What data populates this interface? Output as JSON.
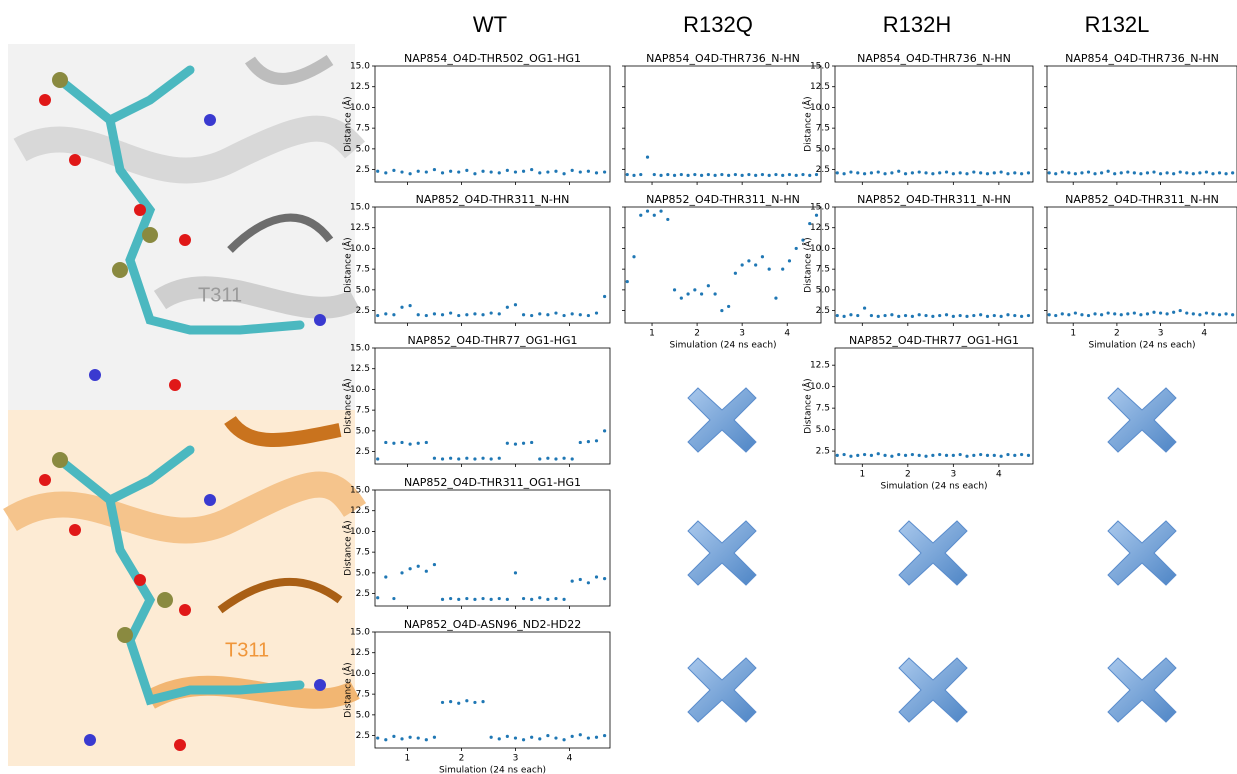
{
  "columns": [
    "WT",
    "R132Q",
    "R132H",
    "R132L"
  ],
  "structure_labels": [
    "T311",
    "T311"
  ],
  "chart_data": [
    {
      "type": "scatter",
      "title": "NAP854_O4D-THR502_OG1-HG1",
      "ylabel": "Distance (Å)",
      "color": "#1f77b4",
      "xlim": [
        0.4,
        4.75
      ],
      "ylim": [
        1,
        15
      ],
      "xticks": [
        1,
        2,
        3,
        4
      ],
      "yticks": [
        2.5,
        {
          "value": 5,
          "label": "5.0"
        },
        7.5,
        {
          "value": 10,
          "label": "10.0"
        },
        12.5,
        {
          "value": 15,
          "label": "15.0"
        }
      ],
      "x": [
        0.45,
        0.6,
        0.75,
        0.9,
        1.05,
        1.2,
        1.35,
        1.5,
        1.65,
        1.8,
        1.95,
        2.1,
        2.25,
        2.4,
        2.55,
        2.7,
        2.85,
        3.0,
        3.15,
        3.3,
        3.45,
        3.6,
        3.75,
        3.9,
        4.05,
        4.2,
        4.35,
        4.5,
        4.65
      ],
      "values": [
        2.3,
        2.1,
        2.4,
        2.2,
        2.0,
        2.3,
        2.2,
        2.5,
        2.1,
        2.3,
        2.2,
        2.4,
        2.0,
        2.3,
        2.2,
        2.1,
        2.4,
        2.2,
        2.3,
        2.5,
        2.1,
        2.2,
        2.3,
        2.0,
        2.4,
        2.2,
        2.3,
        2.1,
        2.2
      ]
    },
    {
      "type": "scatter",
      "title": "NAP852_O4D-THR311_N-HN",
      "ylabel": "Distance (Å)",
      "color": "#1f77b4",
      "xlim": [
        0.4,
        4.75
      ],
      "ylim": [
        1,
        15
      ],
      "xticks": [
        1,
        2,
        3,
        4
      ],
      "yticks": [
        2.5,
        {
          "value": 5,
          "label": "5.0"
        },
        7.5,
        {
          "value": 10,
          "label": "10.0"
        },
        12.5,
        {
          "value": 15,
          "label": "15.0"
        }
      ],
      "x": [
        0.45,
        0.6,
        0.75,
        0.9,
        1.05,
        1.2,
        1.35,
        1.5,
        1.65,
        1.8,
        1.95,
        2.1,
        2.25,
        2.4,
        2.55,
        2.7,
        2.85,
        3.0,
        3.15,
        3.3,
        3.45,
        3.6,
        3.75,
        3.9,
        4.05,
        4.2,
        4.35,
        4.5,
        4.65
      ],
      "values": [
        1.9,
        2.1,
        2.0,
        2.9,
        3.1,
        2.0,
        1.9,
        2.1,
        2.0,
        2.2,
        1.9,
        2.0,
        2.1,
        2.0,
        2.2,
        2.1,
        2.9,
        3.2,
        2.0,
        1.9,
        2.1,
        2.0,
        2.2,
        1.9,
        2.1,
        2.0,
        1.9,
        2.2,
        4.2
      ]
    },
    {
      "type": "scatter",
      "title": "NAP852_O4D-THR77_OG1-HG1",
      "ylabel": "Distance (Å)",
      "color": "#1f77b4",
      "xlim": [
        0.4,
        4.75
      ],
      "ylim": [
        1,
        15
      ],
      "xticks": [
        1,
        2,
        3,
        4
      ],
      "yticks": [
        2.5,
        {
          "value": 5,
          "label": "5.0"
        },
        7.5,
        {
          "value": 10,
          "label": "10.0"
        },
        12.5,
        {
          "value": 15,
          "label": "15.0"
        }
      ],
      "x": [
        0.45,
        0.6,
        0.75,
        0.9,
        1.05,
        1.2,
        1.35,
        1.5,
        1.65,
        1.8,
        1.95,
        2.1,
        2.25,
        2.4,
        2.55,
        2.7,
        2.85,
        3.0,
        3.15,
        3.3,
        3.45,
        3.6,
        3.75,
        3.9,
        4.05,
        4.2,
        4.35,
        4.5,
        4.65
      ],
      "values": [
        1.6,
        3.6,
        3.5,
        3.6,
        3.4,
        3.5,
        3.6,
        1.7,
        1.6,
        1.7,
        1.6,
        1.7,
        1.6,
        1.7,
        1.6,
        1.7,
        3.5,
        3.4,
        3.5,
        3.6,
        1.6,
        1.7,
        1.6,
        1.7,
        1.6,
        3.6,
        3.7,
        3.8,
        5.0
      ]
    },
    {
      "type": "scatter",
      "title": "NAP852_O4D-THR311_OG1-HG1",
      "ylabel": "Distance (Å)",
      "color": "#1f77b4",
      "xlim": [
        0.4,
        4.75
      ],
      "ylim": [
        1,
        15
      ],
      "xticks": [
        1,
        2,
        3,
        4
      ],
      "yticks": [
        2.5,
        {
          "value": 5,
          "label": "5.0"
        },
        7.5,
        {
          "value": 10,
          "label": "10.0"
        },
        12.5,
        {
          "value": 15,
          "label": "15.0"
        }
      ],
      "x": [
        0.45,
        0.6,
        0.75,
        0.9,
        1.05,
        1.2,
        1.35,
        1.5,
        1.65,
        1.8,
        1.95,
        2.1,
        2.25,
        2.4,
        2.55,
        2.7,
        2.85,
        3.0,
        3.15,
        3.3,
        3.45,
        3.6,
        3.75,
        3.9,
        4.05,
        4.2,
        4.35,
        4.5,
        4.65
      ],
      "values": [
        2.0,
        4.5,
        1.9,
        5.0,
        5.5,
        5.8,
        5.2,
        6.0,
        1.8,
        1.9,
        1.8,
        1.9,
        1.8,
        1.9,
        1.8,
        1.9,
        1.8,
        5.0,
        1.9,
        1.8,
        2.0,
        1.8,
        1.9,
        1.8,
        4.0,
        4.2,
        3.8,
        4.5,
        4.3
      ]
    },
    {
      "type": "scatter",
      "title": "NAP852_O4D-ASN96_ND2-HD22",
      "ylabel": "Distance (Å)",
      "xlabel": "Simulation (24 ns each)",
      "color": "#1f77b4",
      "xlim": [
        0.4,
        4.75
      ],
      "ylim": [
        1,
        15
      ],
      "xticks": [
        1,
        2,
        3,
        4
      ],
      "yticks": [
        2.5,
        {
          "value": 5,
          "label": "5.0"
        },
        7.5,
        {
          "value": 10,
          "label": "10.0"
        },
        12.5,
        {
          "value": 15,
          "label": "15.0"
        }
      ],
      "x": [
        0.45,
        0.6,
        0.75,
        0.9,
        1.05,
        1.2,
        1.35,
        1.5,
        1.65,
        1.8,
        1.95,
        2.1,
        2.25,
        2.4,
        2.55,
        2.7,
        2.85,
        3.0,
        3.15,
        3.3,
        3.45,
        3.6,
        3.75,
        3.9,
        4.05,
        4.2,
        4.35,
        4.5,
        4.65
      ],
      "values": [
        2.2,
        2.0,
        2.4,
        2.1,
        2.3,
        2.2,
        2.0,
        2.3,
        6.5,
        6.6,
        6.4,
        6.7,
        6.5,
        6.6,
        2.3,
        2.1,
        2.4,
        2.2,
        2.0,
        2.3,
        2.1,
        2.5,
        2.2,
        2.0,
        2.4,
        2.6,
        2.2,
        2.3,
        2.5
      ]
    },
    {
      "type": "scatter",
      "title": "NAP854_O4D-THR736_N-HN",
      "color": "#1f77b4",
      "xlim": [
        0.4,
        4.75
      ],
      "ylim": [
        1,
        15
      ],
      "xticks": [
        1,
        2,
        3,
        4
      ],
      "yticks": [
        2.5,
        5,
        7.5,
        10,
        12.5,
        15
      ],
      "x": [
        0.45,
        0.6,
        0.75,
        0.9,
        1.05,
        1.2,
        1.35,
        1.5,
        1.65,
        1.8,
        1.95,
        2.1,
        2.25,
        2.4,
        2.55,
        2.7,
        2.85,
        3.0,
        3.15,
        3.3,
        3.45,
        3.6,
        3.75,
        3.9,
        4.05,
        4.2,
        4.35,
        4.5,
        4.65
      ],
      "values": [
        1.9,
        1.8,
        1.9,
        4.0,
        1.9,
        1.8,
        1.9,
        1.8,
        1.9,
        1.8,
        1.9,
        1.8,
        1.9,
        1.8,
        1.9,
        1.8,
        1.9,
        1.8,
        1.9,
        1.8,
        1.9,
        1.8,
        1.9,
        1.8,
        1.9,
        1.8,
        1.9,
        1.8,
        1.9
      ]
    },
    {
      "type": "scatter",
      "title": "NAP852_O4D-THR311_N-HN",
      "xlabel": "Simulation (24 ns each)",
      "color": "#1f77b4",
      "xlim": [
        0.4,
        4.75
      ],
      "ylim": [
        1,
        15
      ],
      "xticks": [
        1,
        2,
        3,
        4
      ],
      "yticks": [
        2.5,
        5,
        7.5,
        10,
        12.5,
        15
      ],
      "x": [
        0.45,
        0.6,
        0.75,
        0.9,
        1.05,
        1.2,
        1.35,
        1.5,
        1.65,
        1.8,
        1.95,
        2.1,
        2.25,
        2.4,
        2.55,
        2.7,
        2.85,
        3.0,
        3.15,
        3.3,
        3.45,
        3.6,
        3.75,
        3.9,
        4.05,
        4.2,
        4.35,
        4.5,
        4.65
      ],
      "values": [
        6,
        9,
        14,
        14.5,
        14,
        14.5,
        13.5,
        5,
        4,
        4.5,
        5,
        4.5,
        5.5,
        4.5,
        2.5,
        3,
        7,
        8,
        8.5,
        8,
        9,
        7.5,
        4,
        7.5,
        8.5,
        10,
        11,
        13,
        14
      ]
    },
    {
      "type": "scatter",
      "title": "NAP854_O4D-THR736_N-HN",
      "ylabel": "Distance (Å)",
      "color": "#1f77b4",
      "xlim": [
        0.4,
        4.75
      ],
      "ylim": [
        1,
        15
      ],
      "xticks": [
        1,
        2,
        3,
        4
      ],
      "yticks": [
        2.5,
        {
          "value": 5,
          "label": "5.0"
        },
        7.5,
        {
          "value": 10,
          "label": "10.0"
        },
        12.5,
        {
          "value": 15,
          "label": "15.0"
        }
      ],
      "x": [
        0.45,
        0.6,
        0.75,
        0.9,
        1.05,
        1.2,
        1.35,
        1.5,
        1.65,
        1.8,
        1.95,
        2.1,
        2.25,
        2.4,
        2.55,
        2.7,
        2.85,
        3.0,
        3.15,
        3.3,
        3.45,
        3.6,
        3.75,
        3.9,
        4.05,
        4.2,
        4.35,
        4.5,
        4.65
      ],
      "values": [
        2.1,
        2.0,
        2.2,
        2.1,
        2.0,
        2.1,
        2.2,
        2.0,
        2.1,
        2.3,
        2.0,
        2.1,
        2.2,
        2.1,
        2.0,
        2.1,
        2.2,
        2.0,
        2.1,
        2.0,
        2.2,
        2.1,
        2.0,
        2.1,
        2.2,
        2.0,
        2.1,
        2.0,
        2.1
      ]
    },
    {
      "type": "scatter",
      "title": "NAP852_O4D-THR311_N-HN",
      "ylabel": "Distance (Å)",
      "color": "#1f77b4",
      "xlim": [
        0.4,
        4.75
      ],
      "ylim": [
        1,
        15
      ],
      "xticks": [
        1,
        2,
        3,
        4
      ],
      "yticks": [
        2.5,
        {
          "value": 5,
          "label": "5.0"
        },
        7.5,
        {
          "value": 10,
          "label": "10.0"
        },
        12.5,
        {
          "value": 15,
          "label": "15.0"
        }
      ],
      "x": [
        0.45,
        0.6,
        0.75,
        0.9,
        1.05,
        1.2,
        1.35,
        1.5,
        1.65,
        1.8,
        1.95,
        2.1,
        2.25,
        2.4,
        2.55,
        2.7,
        2.85,
        3.0,
        3.15,
        3.3,
        3.45,
        3.6,
        3.75,
        3.9,
        4.05,
        4.2,
        4.35,
        4.5,
        4.65
      ],
      "values": [
        1.9,
        1.8,
        2.0,
        1.9,
        2.8,
        1.9,
        1.8,
        1.9,
        2.0,
        1.8,
        1.9,
        1.8,
        2.0,
        1.9,
        1.8,
        1.9,
        2.0,
        1.8,
        1.9,
        1.8,
        1.9,
        2.0,
        1.8,
        1.9,
        1.8,
        2.0,
        1.9,
        1.8,
        1.9
      ]
    },
    {
      "type": "scatter",
      "title": "NAP852_O4D-THR77_OG1-HG1",
      "ylabel": "Distance (Å)",
      "xlabel": "Simulation (24 ns each)",
      "color": "#1f77b4",
      "xlim": [
        0.4,
        4.75
      ],
      "ylim": [
        1,
        14.5
      ],
      "xticks": [
        1,
        2,
        3,
        4
      ],
      "yticks": [
        2.5,
        {
          "value": 5,
          "label": "5.0"
        },
        7.5,
        {
          "value": 10,
          "label": "10.0"
        },
        12.5
      ],
      "x": [
        0.45,
        0.6,
        0.75,
        0.9,
        1.05,
        1.2,
        1.35,
        1.5,
        1.65,
        1.8,
        1.95,
        2.1,
        2.25,
        2.4,
        2.55,
        2.7,
        2.85,
        3.0,
        3.15,
        3.3,
        3.45,
        3.6,
        3.75,
        3.9,
        4.05,
        4.2,
        4.35,
        4.5,
        4.65
      ],
      "values": [
        2.0,
        2.1,
        1.9,
        2.0,
        2.1,
        2.0,
        2.2,
        2.0,
        1.9,
        2.1,
        2.0,
        2.1,
        2.0,
        1.9,
        2.0,
        2.1,
        2.0,
        2.0,
        2.1,
        1.9,
        2.0,
        2.1,
        2.0,
        2.0,
        1.9,
        2.1,
        2.0,
        2.1,
        2.0
      ]
    },
    {
      "type": "scatter",
      "title": "NAP854_O4D-THR736_N-HN",
      "color": "#1f77b4",
      "xlim": [
        0.4,
        4.75
      ],
      "ylim": [
        1,
        15
      ],
      "xticks": [
        1,
        2,
        3,
        4
      ],
      "yticks": [
        2.5,
        5,
        7.5,
        10,
        12.5,
        15
      ],
      "x": [
        0.45,
        0.6,
        0.75,
        0.9,
        1.05,
        1.2,
        1.35,
        1.5,
        1.65,
        1.8,
        1.95,
        2.1,
        2.25,
        2.4,
        2.55,
        2.7,
        2.85,
        3.0,
        3.15,
        3.3,
        3.45,
        3.6,
        3.75,
        3.9,
        4.05,
        4.2,
        4.35,
        4.5,
        4.65
      ],
      "values": [
        2.1,
        2.0,
        2.2,
        2.1,
        2.0,
        2.1,
        2.2,
        2.0,
        2.1,
        2.3,
        2.0,
        2.1,
        2.2,
        2.1,
        2.0,
        2.1,
        2.2,
        2.0,
        2.1,
        2.0,
        2.2,
        2.1,
        2.0,
        2.1,
        2.2,
        2.0,
        2.1,
        2.0,
        2.1
      ]
    },
    {
      "type": "scatter",
      "title": "NAP852_O4D-THR311_N-HN",
      "xlabel": "Simulation (24 ns each)",
      "color": "#1f77b4",
      "xlim": [
        0.4,
        4.75
      ],
      "ylim": [
        1,
        15
      ],
      "xticks": [
        1,
        2,
        3,
        4
      ],
      "yticks": [
        2.5,
        5,
        7.5,
        10,
        12.5,
        15
      ],
      "x": [
        0.45,
        0.6,
        0.75,
        0.9,
        1.05,
        1.2,
        1.35,
        1.5,
        1.65,
        1.8,
        1.95,
        2.1,
        2.25,
        2.4,
        2.55,
        2.7,
        2.85,
        3.0,
        3.15,
        3.3,
        3.45,
        3.6,
        3.75,
        3.9,
        4.05,
        4.2,
        4.35,
        4.5,
        4.65
      ],
      "values": [
        2.0,
        1.9,
        2.1,
        2.0,
        2.2,
        2.0,
        1.9,
        2.1,
        2.0,
        2.2,
        2.1,
        2.0,
        2.1,
        2.2,
        2.0,
        2.1,
        2.3,
        2.2,
        2.1,
        2.3,
        2.5,
        2.2,
        2.1,
        2.0,
        2.2,
        2.1,
        2.0,
        2.1,
        2.0
      ]
    }
  ]
}
